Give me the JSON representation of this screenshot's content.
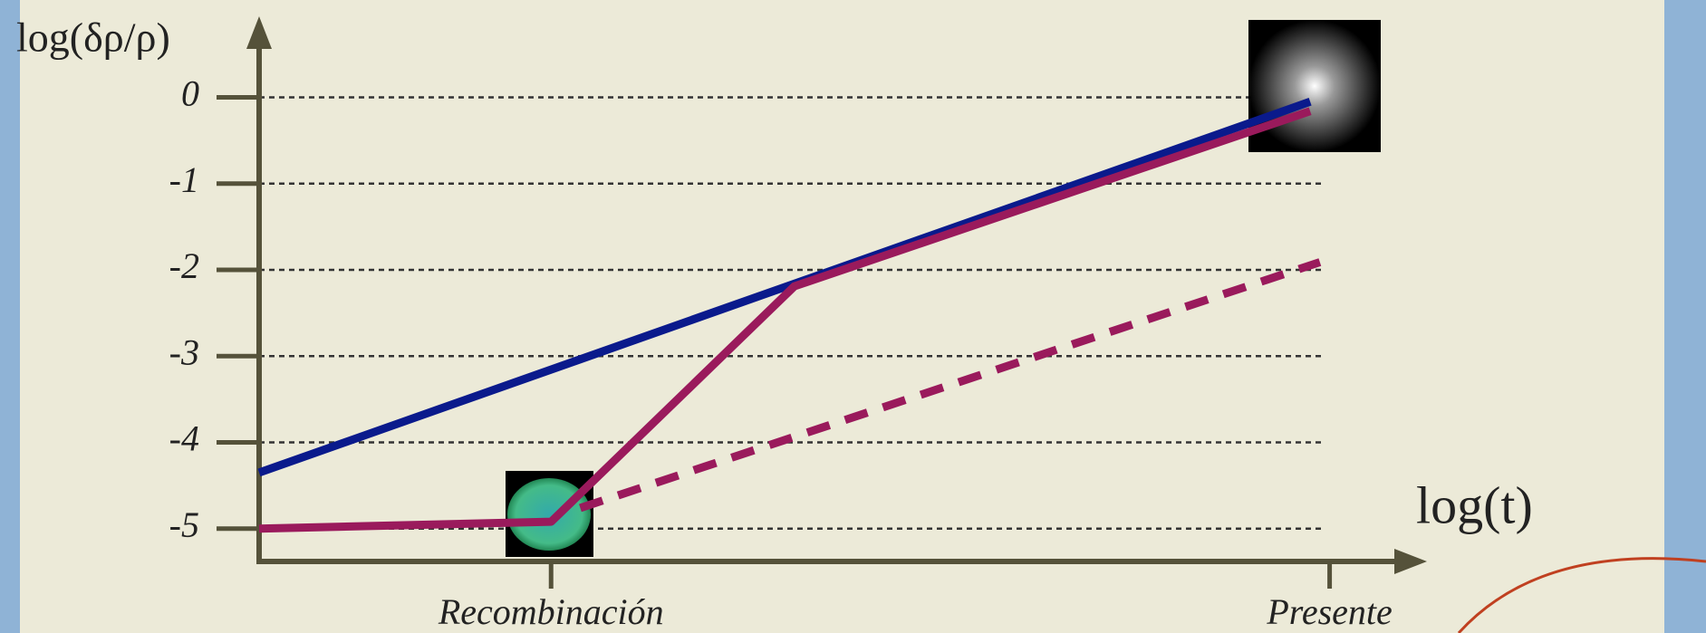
{
  "chart_data": {
    "type": "line",
    "ylabel": "log(δρ/ρ)",
    "xlabel": "log(t)",
    "xlim": [
      0,
      12
    ],
    "ylim": [
      -5.38,
      0.94
    ],
    "yticks": [
      0,
      -1,
      -2,
      -3,
      -4,
      -5
    ],
    "xticks": [
      {
        "value": 3,
        "label": "Recombinación"
      },
      {
        "value": 11,
        "label": "Presente"
      }
    ],
    "grid": true,
    "series": [
      {
        "color": "#0a1a8c",
        "style": "solid",
        "x": [
          0,
          10.8
        ],
        "values": [
          -4.35,
          -0.05
        ]
      },
      {
        "color": "#9a1a5c",
        "style": "solid",
        "x": [
          0,
          3,
          5.5,
          10.8
        ],
        "values": [
          -5,
          -4.92,
          -2.19,
          -0.16
        ]
      },
      {
        "color": "#9a1a5c",
        "style": "dashed",
        "x": [
          3.3,
          10.9
        ],
        "values": [
          -4.76,
          -1.91
        ]
      }
    ]
  }
}
